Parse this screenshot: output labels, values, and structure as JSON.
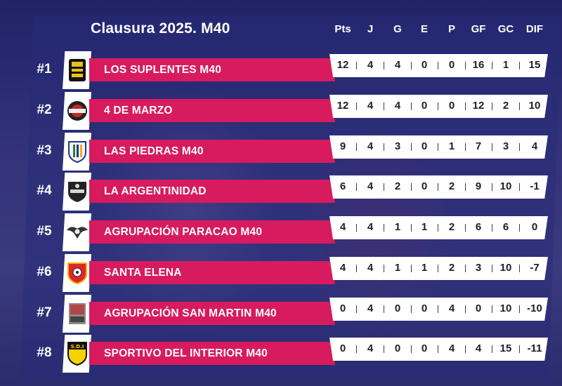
{
  "title": "Clausura 2025. M40",
  "columns": [
    "Pts",
    "J",
    "G",
    "E",
    "P",
    "GF",
    "GC",
    "DIF"
  ],
  "colors": {
    "name_bar": "#d81b5e",
    "stat_bar": "#ffffff",
    "background": "#2b2f72"
  },
  "rows": [
    {
      "rank": "#1",
      "team": "LOS SUPLENTES M40",
      "logo_icon": "los-suplentes-crest-icon",
      "stats": [
        "12",
        "4",
        "4",
        "0",
        "0",
        "16",
        "1",
        "15"
      ]
    },
    {
      "rank": "#2",
      "team": "4 DE MARZO",
      "logo_icon": "cuatro-de-marzo-crest-icon",
      "stats": [
        "12",
        "4",
        "4",
        "0",
        "0",
        "12",
        "2",
        "10"
      ]
    },
    {
      "rank": "#3",
      "team": "LAS PIEDRAS M40",
      "logo_icon": "las-piedras-crest-icon",
      "stats": [
        "9",
        "4",
        "3",
        "0",
        "1",
        "7",
        "3",
        "4"
      ]
    },
    {
      "rank": "#4",
      "team": "LA ARGENTINIDAD",
      "logo_icon": "la-argentinidad-crest-icon",
      "stats": [
        "6",
        "4",
        "2",
        "0",
        "2",
        "9",
        "10",
        "-1"
      ]
    },
    {
      "rank": "#5",
      "team": "AGRUPACIÓN PARACAO M40",
      "logo_icon": "paracao-crest-icon",
      "stats": [
        "4",
        "4",
        "1",
        "1",
        "2",
        "6",
        "6",
        "0"
      ]
    },
    {
      "rank": "#6",
      "team": "SANTA ELENA",
      "logo_icon": "santa-elena-crest-icon",
      "stats": [
        "4",
        "4",
        "1",
        "1",
        "2",
        "3",
        "10",
        "-7"
      ]
    },
    {
      "rank": "#7",
      "team": "AGRUPACIÓN SAN MARTIN M40",
      "logo_icon": "san-martin-crest-icon",
      "stats": [
        "0",
        "4",
        "0",
        "0",
        "4",
        "0",
        "10",
        "-10"
      ]
    },
    {
      "rank": "#8",
      "team": "SPORTIVO DEL INTERIOR M40",
      "logo_icon": "sportivo-del-interior-crest-icon",
      "stats": [
        "0",
        "4",
        "0",
        "0",
        "4",
        "4",
        "15",
        "-11"
      ]
    }
  ],
  "logo_texts": {
    "sdi": "S.D.I"
  }
}
